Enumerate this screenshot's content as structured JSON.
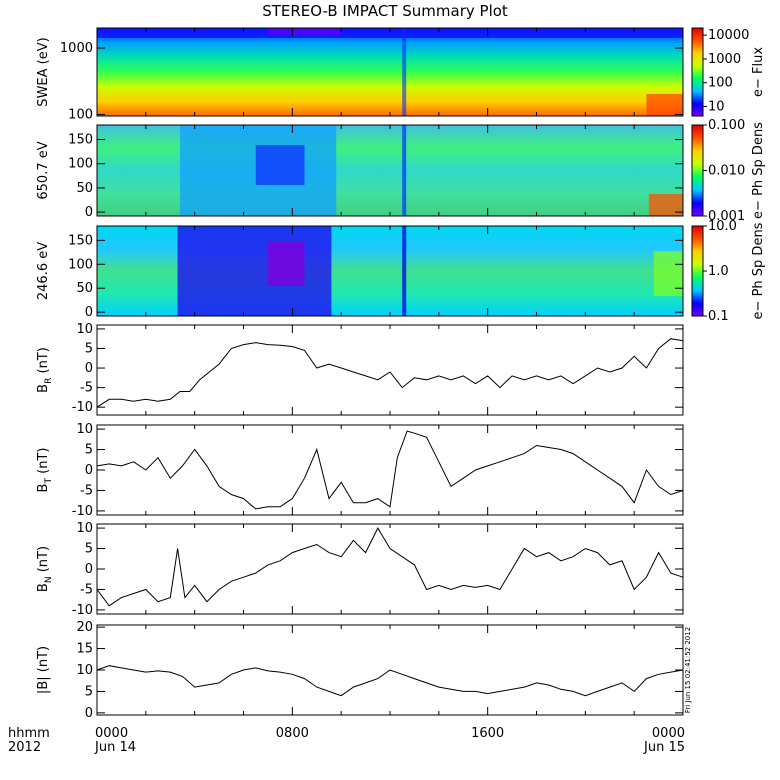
{
  "title": "STEREO-B IMPACT Summary Plot",
  "time_axis": {
    "row1_label": "hhmm",
    "row2_label": "2012",
    "ticks": [
      {
        "hour": 0,
        "label": "0000",
        "date": "Jun 14"
      },
      {
        "hour": 8,
        "label": "0800",
        "date": ""
      },
      {
        "hour": 16,
        "label": "1600",
        "date": ""
      },
      {
        "hour": 24,
        "label": "0000",
        "date": "Jun 15"
      }
    ]
  },
  "stamp": "Fri Jun 15 02:41:52 2012",
  "chart_data": [
    {
      "type": "heatmap",
      "ylabel": "SWEA (eV)",
      "y_scale": "log",
      "ylim": [
        95,
        2000
      ],
      "y_ticks": [
        {
          "value": 100,
          "label": "100"
        },
        {
          "value": 1000,
          "label": "1000"
        }
      ],
      "colorbar": {
        "label": "e− Flux",
        "scale": "log",
        "range": [
          4,
          20000
        ],
        "ticks": [
          {
            "value": 10,
            "label": "10"
          },
          {
            "value": 100,
            "label": "100"
          },
          {
            "value": 1000,
            "label": "1000"
          },
          {
            "value": 10000,
            "label": "10000"
          }
        ]
      },
      "colors": [
        "#7000ff",
        "#0000ff",
        "#00c8ff",
        "#00ff60",
        "#c8ff00",
        "#ffd000",
        "#ff5000",
        "#e00000"
      ]
    },
    {
      "type": "heatmap",
      "ylabel": "650.7 eV",
      "y_scale": "linear",
      "ylim": [
        -8,
        180
      ],
      "y_ticks": [
        {
          "value": 0,
          "label": "0"
        },
        {
          "value": 50,
          "label": "50"
        },
        {
          "value": 100,
          "label": "100"
        },
        {
          "value": 150,
          "label": "150"
        }
      ],
      "colorbar": {
        "label": "e− Ph Sp Dens",
        "scale": "log",
        "range": [
          0.001,
          0.1
        ],
        "ticks": [
          {
            "value": 0.001,
            "label": "0.001"
          },
          {
            "value": 0.01,
            "label": "0.010"
          },
          {
            "value": 0.1,
            "label": "0.100"
          }
        ]
      }
    },
    {
      "type": "heatmap",
      "ylabel": "246.6 eV",
      "y_scale": "linear",
      "ylim": [
        -8,
        180
      ],
      "y_ticks": [
        {
          "value": 0,
          "label": "0"
        },
        {
          "value": 50,
          "label": "50"
        },
        {
          "value": 100,
          "label": "100"
        },
        {
          "value": 150,
          "label": "150"
        }
      ],
      "colorbar": {
        "label": "e− Ph Sp Dens",
        "scale": "log",
        "range": [
          0.1,
          10
        ],
        "ticks": [
          {
            "value": 0.1,
            "label": "0.1"
          },
          {
            "value": 1,
            "label": "1.0"
          },
          {
            "value": 10,
            "label": "10.0"
          }
        ]
      }
    },
    {
      "type": "line",
      "ylabel": "B",
      "ylabel_sub": "R",
      "ylabel_unit": "(nT)",
      "ylim": [
        -12,
        11
      ],
      "y_ticks": [
        -10,
        -5,
        0,
        5,
        10
      ],
      "x_hours": [
        0,
        0.5,
        1,
        1.5,
        2,
        2.5,
        3,
        3.4,
        3.8,
        4.2,
        4.6,
        5,
        5.5,
        6,
        6.5,
        7,
        7.5,
        8,
        8.5,
        9,
        9.5,
        10,
        10.5,
        11,
        11.5,
        12,
        12.5,
        13,
        13.5,
        14,
        14.5,
        15,
        15.5,
        16,
        16.5,
        17,
        17.5,
        18,
        18.5,
        19,
        19.5,
        20,
        20.5,
        21,
        21.5,
        22,
        22.5,
        23,
        23.5,
        24
      ],
      "values": [
        -10,
        -8,
        -8,
        -8.5,
        -8,
        -8.5,
        -8,
        -6,
        -6,
        -3,
        -1,
        1,
        5,
        6,
        6.5,
        6,
        5.8,
        5.5,
        4.5,
        0,
        1,
        0,
        -1,
        -2,
        -3,
        -1,
        -5,
        -2.5,
        -3,
        -2,
        -3,
        -2,
        -4,
        -2,
        -5,
        -2,
        -3,
        -2,
        -3,
        -2,
        -4,
        -2,
        0,
        -1,
        0,
        3,
        0,
        5,
        7.5,
        7
      ]
    },
    {
      "type": "line",
      "ylabel": "B",
      "ylabel_sub": "T",
      "ylabel_unit": "(nT)",
      "ylim": [
        -11,
        11
      ],
      "y_ticks": [
        -10,
        -5,
        0,
        5,
        10
      ],
      "x_hours": [
        0,
        0.5,
        1,
        1.5,
        2,
        2.5,
        3,
        3.5,
        4,
        4.5,
        5,
        5.5,
        6,
        6.5,
        7,
        7.5,
        8,
        8.5,
        9,
        9.5,
        10,
        10.5,
        11,
        11.5,
        12,
        12.3,
        12.7,
        13,
        13.5,
        14,
        14.5,
        15,
        15.5,
        16,
        16.5,
        17,
        17.5,
        18,
        18.5,
        19,
        19.5,
        20,
        20.5,
        21,
        21.5,
        22,
        22.5,
        23,
        23.5,
        24
      ],
      "values": [
        1,
        1.5,
        1,
        2,
        0,
        3,
        -2,
        1,
        5,
        1,
        -4,
        -6,
        -7,
        -9.5,
        -9,
        -9,
        -7,
        -2,
        5,
        -7,
        -3,
        -8,
        -8,
        -7,
        -9,
        3,
        9.5,
        9,
        8,
        2,
        -4,
        -2,
        0,
        1,
        2,
        3,
        4,
        6,
        5.5,
        5,
        4,
        2,
        0,
        -2,
        -4,
        -8,
        0,
        -4,
        -6,
        -5
      ]
    },
    {
      "type": "line",
      "ylabel": "B",
      "ylabel_sub": "N",
      "ylabel_unit": "(nT)",
      "ylim": [
        -11,
        11
      ],
      "y_ticks": [
        -10,
        -5,
        0,
        5,
        10
      ],
      "x_hours": [
        0,
        0.5,
        1,
        1.5,
        2,
        2.5,
        3,
        3.3,
        3.6,
        4,
        4.5,
        5,
        5.5,
        6,
        6.5,
        7,
        7.5,
        8,
        8.5,
        9,
        9.5,
        10,
        10.5,
        11,
        11.5,
        12,
        12.5,
        13,
        13.5,
        14,
        14.5,
        15,
        15.5,
        16,
        16.5,
        17,
        17.5,
        18,
        18.5,
        19,
        19.5,
        20,
        20.5,
        21,
        21.5,
        22,
        22.5,
        23,
        23.5,
        24
      ],
      "values": [
        -5,
        -9,
        -7,
        -6,
        -5,
        -8,
        -7,
        5,
        -7,
        -4,
        -8,
        -5,
        -3,
        -2,
        -1,
        1,
        2,
        4,
        5,
        6,
        4,
        3,
        7,
        4,
        10,
        5,
        3,
        1,
        -5,
        -4,
        -5,
        -4,
        -4.5,
        -4,
        -5,
        0,
        5,
        3,
        4,
        2,
        3,
        5,
        4,
        1,
        2,
        -5,
        -2,
        4,
        -1,
        -2
      ]
    },
    {
      "type": "line",
      "ylabel": "|B|",
      "ylabel_unit": "(nT)",
      "ylim": [
        -0.5,
        20.5
      ],
      "y_ticks": [
        0,
        5,
        10,
        15,
        20
      ],
      "x_hours": [
        0,
        0.5,
        1,
        1.5,
        2,
        2.5,
        3,
        3.5,
        4,
        4.5,
        5,
        5.5,
        6,
        6.5,
        7,
        7.5,
        8,
        8.5,
        9,
        9.5,
        10,
        10.5,
        11,
        11.5,
        12,
        12.5,
        13,
        13.5,
        14,
        14.5,
        15,
        15.5,
        16,
        16.5,
        17,
        17.5,
        18,
        18.5,
        19,
        19.5,
        20,
        20.5,
        21,
        21.5,
        22,
        22.5,
        23,
        23.5,
        24
      ],
      "values": [
        10,
        11,
        10.5,
        10,
        9.5,
        9.8,
        9.5,
        8.5,
        6,
        6.5,
        7,
        9,
        10,
        10.5,
        9.8,
        9.5,
        9,
        8,
        6,
        5,
        4,
        6,
        7,
        8,
        10,
        9,
        8,
        7,
        6,
        5.5,
        5,
        5,
        4.5,
        5,
        5.5,
        6,
        7,
        6.5,
        5.5,
        5,
        4,
        5,
        6,
        7,
        5,
        8,
        9,
        9.5,
        10
      ]
    }
  ]
}
